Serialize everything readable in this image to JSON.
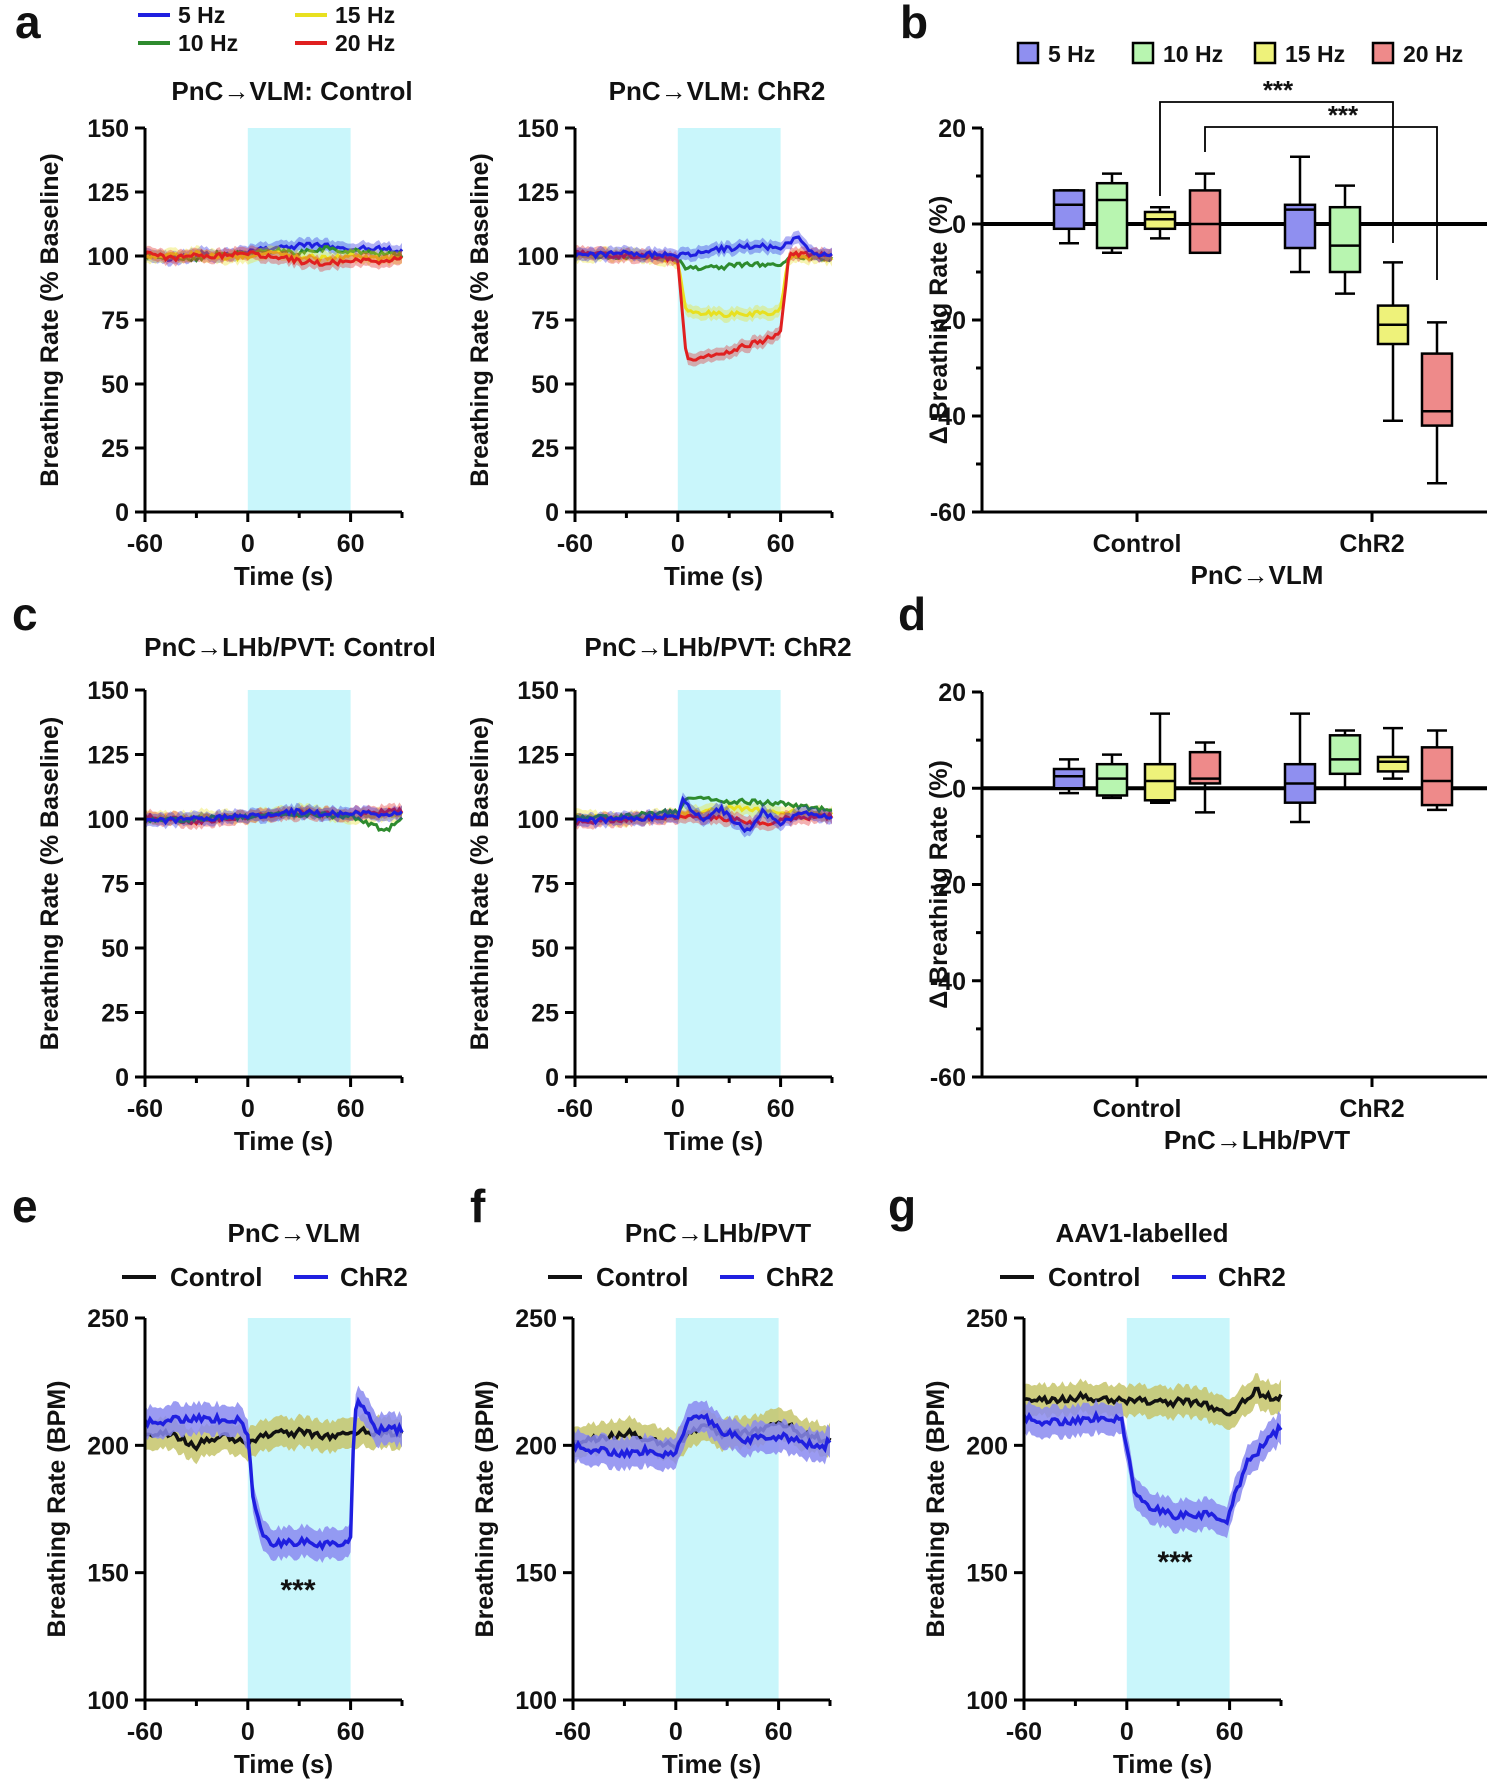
{
  "panel_labels": [
    "a",
    "b",
    "c",
    "d",
    "e",
    "f",
    "g"
  ],
  "colors": {
    "5 Hz": "#1f1fe0",
    "10 Hz": "#2e8b2e",
    "15 Hz": "#e8e020",
    "20 Hz": "#e02020",
    "Control": "#111111",
    "ChR2": "#1f1fe0",
    "stim": "#c9f6fb",
    "box_5": "#8f8ff0",
    "box_10": "#b8f5b0",
    "box_15": "#eef27a",
    "box_20": "#ee8a8a",
    "band_control": "#c6c46a",
    "band_chr2": "#8a8af0"
  },
  "legend_a": [
    "5 Hz",
    "15 Hz",
    "10 Hz",
    "20 Hz"
  ],
  "legend_b": [
    "5 Hz",
    "10 Hz",
    "15 Hz",
    "20 Hz"
  ],
  "legend_efg": [
    "Control",
    "ChR2"
  ],
  "chart_data": [
    {
      "id": "a1",
      "type": "line",
      "title": "PnC→VLM: Control",
      "xlabel": "Time (s)",
      "ylabel": "Breathing Rate (% Baseline)",
      "xlim": [
        -60,
        90
      ],
      "ylim": [
        0,
        150
      ],
      "xticks": [
        "-60",
        "0",
        "60"
      ],
      "yticks": [
        "0",
        "25",
        "50",
        "75",
        "100",
        "125",
        "150"
      ],
      "stim": [
        0,
        60
      ],
      "series": [
        {
          "name": "5 Hz",
          "x": [
            -60,
            -45,
            -30,
            -15,
            0,
            15,
            30,
            45,
            60,
            75,
            90
          ],
          "values": [
            100,
            99,
            101,
            100,
            102,
            103,
            104,
            104,
            103,
            103,
            102
          ]
        },
        {
          "name": "10 Hz",
          "x": [
            -60,
            -45,
            -30,
            -15,
            0,
            15,
            30,
            45,
            60,
            75,
            90
          ],
          "values": [
            100,
            100,
            99,
            101,
            101,
            102,
            101,
            103,
            102,
            101,
            100
          ]
        },
        {
          "name": "15 Hz",
          "x": [
            -60,
            -45,
            -30,
            -15,
            0,
            15,
            30,
            45,
            60,
            75,
            90
          ],
          "values": [
            99,
            100,
            101,
            99,
            100,
            101,
            100,
            99,
            100,
            99,
            99
          ]
        },
        {
          "name": "20 Hz",
          "x": [
            -60,
            -45,
            -30,
            -15,
            0,
            15,
            30,
            45,
            60,
            75,
            90
          ],
          "values": [
            101,
            99,
            100,
            100,
            101,
            100,
            98,
            97,
            98,
            98,
            99
          ]
        }
      ]
    },
    {
      "id": "a2",
      "type": "line",
      "title": "PnC→VLM: ChR2",
      "xlabel": "Time (s)",
      "ylabel": "Breathing Rate (% Baseline)",
      "xlim": [
        -60,
        90
      ],
      "ylim": [
        0,
        150
      ],
      "xticks": [
        "-60",
        "0",
        "60"
      ],
      "yticks": [
        "0",
        "25",
        "50",
        "75",
        "100",
        "125",
        "150"
      ],
      "stim": [
        0,
        60
      ],
      "series": [
        {
          "name": "10 Hz",
          "x": [
            -60,
            -30,
            0,
            5,
            30,
            55,
            60,
            65,
            90
          ],
          "values": [
            100,
            100,
            99,
            95,
            96,
            97,
            97,
            100,
            99
          ]
        },
        {
          "name": "15 Hz",
          "x": [
            -60,
            -30,
            0,
            5,
            30,
            55,
            60,
            65,
            90
          ],
          "values": [
            100,
            101,
            98,
            78,
            77,
            78,
            80,
            100,
            99
          ]
        },
        {
          "name": "20 Hz",
          "x": [
            -60,
            -30,
            0,
            5,
            10,
            30,
            50,
            60,
            65,
            90
          ],
          "values": [
            101,
            100,
            99,
            60,
            59,
            63,
            67,
            70,
            101,
            100
          ]
        },
        {
          "name": "5 Hz",
          "x": [
            -60,
            -30,
            0,
            15,
            30,
            45,
            60,
            70,
            80,
            90
          ],
          "values": [
            100,
            101,
            100,
            102,
            103,
            104,
            103,
            107,
            101,
            100
          ]
        }
      ]
    },
    {
      "id": "b",
      "type": "box",
      "xlabel": "PnC→VLM",
      "ylabel": "Δ Breathing Rate (%)",
      "ylim": [
        -60,
        20
      ],
      "yticks": [
        "-60",
        "-40",
        "-20",
        "0",
        "20"
      ],
      "groups": [
        "Control",
        "ChR2"
      ],
      "significance": [
        "***",
        "***"
      ],
      "boxes": [
        {
          "group": "Control",
          "freq": "5 Hz",
          "min": -4,
          "q1": -1,
          "median": 4,
          "q3": 7,
          "max": 7
        },
        {
          "group": "Control",
          "freq": "10 Hz",
          "min": -6,
          "q1": -5,
          "median": 5,
          "q3": 8.5,
          "max": 10.5
        },
        {
          "group": "Control",
          "freq": "15 Hz",
          "min": -3,
          "q1": -1,
          "median": 1,
          "q3": 2.5,
          "max": 3.5
        },
        {
          "group": "Control",
          "freq": "20 Hz",
          "min": -6,
          "q1": -6,
          "median": 0,
          "q3": 7,
          "max": 10.5
        },
        {
          "group": "ChR2",
          "freq": "5 Hz",
          "min": -10,
          "q1": -5,
          "median": 3,
          "q3": 4,
          "max": 14
        },
        {
          "group": "ChR2",
          "freq": "10 Hz",
          "min": -14.5,
          "q1": -10,
          "median": -4.5,
          "q3": 3.5,
          "max": 8
        },
        {
          "group": "ChR2",
          "freq": "15 Hz",
          "min": -41,
          "q1": -25,
          "median": -21,
          "q3": -17,
          "max": -8
        },
        {
          "group": "ChR2",
          "freq": "20 Hz",
          "min": -54,
          "q1": -42,
          "median": -39,
          "q3": -27,
          "max": -20.5
        }
      ]
    },
    {
      "id": "c1",
      "type": "line",
      "title": "PnC→LHb/PVT: Control",
      "xlabel": "Time (s)",
      "ylabel": "Breathing Rate (% Baseline)",
      "xlim": [
        -60,
        90
      ],
      "ylim": [
        0,
        150
      ],
      "xticks": [
        "-60",
        "0",
        "60"
      ],
      "yticks": [
        "0",
        "25",
        "50",
        "75",
        "100",
        "125",
        "150"
      ],
      "stim": [
        0,
        60
      ],
      "series": [
        {
          "name": "15 Hz",
          "x": [
            -60,
            -30,
            0,
            30,
            60,
            90
          ],
          "values": [
            100,
            101,
            101,
            103,
            101,
            102
          ]
        },
        {
          "name": "20 Hz",
          "x": [
            -60,
            -30,
            0,
            30,
            60,
            90
          ],
          "values": [
            101,
            99,
            101,
            102,
            102,
            103
          ]
        },
        {
          "name": "10 Hz",
          "x": [
            -60,
            -30,
            0,
            30,
            60,
            75,
            80,
            90
          ],
          "values": [
            99,
            100,
            101,
            102,
            101,
            97,
            95,
            100
          ]
        },
        {
          "name": "5 Hz",
          "x": [
            -60,
            -30,
            0,
            15,
            30,
            45,
            60,
            90
          ],
          "values": [
            99,
            100,
            101,
            102,
            103,
            102,
            102,
            102
          ]
        }
      ]
    },
    {
      "id": "c2",
      "type": "line",
      "title": "PnC→LHb/PVT: ChR2",
      "xlabel": "Time (s)",
      "ylabel": "Breathing Rate (% Baseline)",
      "xlim": [
        -60,
        90
      ],
      "ylim": [
        0,
        150
      ],
      "xticks": [
        "-60",
        "0",
        "60"
      ],
      "yticks": [
        "0",
        "25",
        "50",
        "75",
        "100",
        "125",
        "150"
      ],
      "stim": [
        0,
        60
      ],
      "series": [
        {
          "name": "15 Hz",
          "x": [
            -60,
            -30,
            0,
            30,
            60,
            90
          ],
          "values": [
            101,
            100,
            102,
            104,
            103,
            102
          ]
        },
        {
          "name": "20 Hz",
          "x": [
            -60,
            -30,
            0,
            30,
            50,
            60,
            90
          ],
          "values": [
            99,
            100,
            101,
            100,
            98,
            100,
            101
          ]
        },
        {
          "name": "10 Hz",
          "x": [
            -60,
            -30,
            0,
            5,
            30,
            60,
            90
          ],
          "values": [
            100,
            101,
            103,
            108,
            107,
            106,
            103
          ]
        },
        {
          "name": "5 Hz",
          "x": [
            -60,
            -30,
            0,
            3,
            15,
            25,
            40,
            50,
            60,
            75,
            90
          ],
          "values": [
            99,
            100,
            101,
            107,
            100,
            104,
            95,
            103,
            98,
            103,
            100
          ]
        }
      ]
    },
    {
      "id": "d",
      "type": "box",
      "xlabel": "PnC→LHb/PVT",
      "ylabel": "Δ Breathing Rate (%)",
      "ylim": [
        -60,
        20
      ],
      "yticks": [
        "-60",
        "-40",
        "-20",
        "0",
        "20"
      ],
      "groups": [
        "Control",
        "ChR2"
      ],
      "boxes": [
        {
          "group": "Control",
          "freq": "5 Hz",
          "min": -1,
          "q1": 0,
          "median": 2.5,
          "q3": 4,
          "max": 6
        },
        {
          "group": "Control",
          "freq": "10 Hz",
          "min": -2,
          "q1": -1.5,
          "median": 2,
          "q3": 5,
          "max": 7
        },
        {
          "group": "Control",
          "freq": "15 Hz",
          "min": -3,
          "q1": -2.5,
          "median": 1.5,
          "q3": 5,
          "max": 15.5
        },
        {
          "group": "Control",
          "freq": "20 Hz",
          "min": -5,
          "q1": 1,
          "median": 2,
          "q3": 7.5,
          "max": 9.5
        },
        {
          "group": "ChR2",
          "freq": "5 Hz",
          "min": -7,
          "q1": -3,
          "median": 1,
          "q3": 5,
          "max": 15.5
        },
        {
          "group": "ChR2",
          "freq": "10 Hz",
          "min": 0,
          "q1": 3,
          "median": 6,
          "q3": 11,
          "max": 12
        },
        {
          "group": "ChR2",
          "freq": "15 Hz",
          "min": 2,
          "q1": 3.5,
          "median": 5.5,
          "q3": 6.5,
          "max": 12.5
        },
        {
          "group": "ChR2",
          "freq": "20 Hz",
          "min": -4.5,
          "q1": -3.5,
          "median": 1.5,
          "q3": 8.5,
          "max": 12
        }
      ]
    },
    {
      "id": "e",
      "type": "line",
      "title": "PnC→VLM",
      "xlabel": "Time (s)",
      "ylabel": "Breathing Rate (BPM)",
      "xlim": [
        -60,
        90
      ],
      "ylim": [
        100,
        250
      ],
      "xticks": [
        "-60",
        "0",
        "60"
      ],
      "yticks": [
        "100",
        "150",
        "200",
        "250"
      ],
      "stim": [
        0,
        60
      ],
      "significance": "***",
      "series": [
        {
          "name": "Control",
          "x": [
            -60,
            -45,
            -30,
            -15,
            0,
            15,
            30,
            45,
            60,
            75,
            90
          ],
          "values": [
            203,
            205,
            200,
            204,
            201,
            205,
            205,
            203,
            206,
            205,
            205
          ]
        },
        {
          "name": "ChR2",
          "x": [
            -60,
            -45,
            -30,
            -15,
            -5,
            0,
            3,
            8,
            15,
            30,
            45,
            55,
            60,
            62,
            65,
            75,
            90
          ],
          "values": [
            209,
            210,
            211,
            210,
            210,
            205,
            180,
            165,
            161,
            162,
            161,
            162,
            164,
            210,
            218,
            206,
            206
          ]
        }
      ]
    },
    {
      "id": "f",
      "type": "line",
      "title": "PnC→LHb/PVT",
      "xlabel": "Time (s)",
      "ylabel": "Breathing Rate (BPM)",
      "xlim": [
        -60,
        90
      ],
      "ylim": [
        100,
        250
      ],
      "xticks": [
        "-60",
        "0",
        "60"
      ],
      "yticks": [
        "100",
        "150",
        "200",
        "250"
      ],
      "stim": [
        0,
        60
      ],
      "series": [
        {
          "name": "Control",
          "x": [
            -60,
            -45,
            -30,
            -15,
            0,
            15,
            30,
            45,
            60,
            75,
            90
          ],
          "values": [
            200,
            203,
            205,
            202,
            200,
            208,
            204,
            205,
            210,
            204,
            202
          ]
        },
        {
          "name": "ChR2",
          "x": [
            -60,
            -45,
            -30,
            -15,
            -5,
            0,
            8,
            15,
            25,
            40,
            55,
            65,
            75,
            85,
            90
          ],
          "values": [
            200,
            198,
            197,
            198,
            196,
            198,
            210,
            212,
            206,
            202,
            204,
            203,
            201,
            198,
            202
          ]
        }
      ]
    },
    {
      "id": "g",
      "type": "line",
      "title": "AAV1-labelled",
      "xlabel": "Time (s)",
      "ylabel": "Breathing Rate (BPM)",
      "xlim": [
        -60,
        90
      ],
      "ylim": [
        100,
        250
      ],
      "xticks": [
        "-60",
        "0",
        "60"
      ],
      "yticks": [
        "100",
        "150",
        "200",
        "250"
      ],
      "stim": [
        0,
        60
      ],
      "significance": "***",
      "series": [
        {
          "name": "Control",
          "x": [
            -60,
            -45,
            -30,
            -15,
            0,
            15,
            30,
            45,
            60,
            70,
            75,
            80,
            90
          ],
          "values": [
            217,
            218,
            219,
            218,
            218,
            217,
            217,
            216,
            213,
            218,
            222,
            219,
            219
          ]
        },
        {
          "name": "ChR2",
          "x": [
            -60,
            -45,
            -30,
            -15,
            -3,
            0,
            5,
            15,
            30,
            45,
            55,
            58,
            62,
            70,
            80,
            90
          ],
          "values": [
            211,
            209,
            210,
            211,
            210,
            200,
            180,
            175,
            172,
            173,
            172,
            170,
            178,
            193,
            200,
            207
          ]
        }
      ]
    }
  ]
}
